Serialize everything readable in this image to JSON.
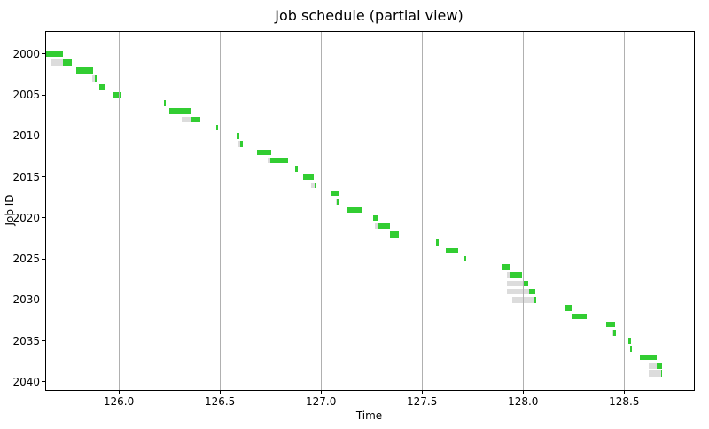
{
  "chart_data": {
    "type": "bar",
    "variant": "gantt-horizontal",
    "title": "Job schedule (partial view)",
    "xlabel": "Time",
    "ylabel": "Job ID",
    "xlim": [
      125.64,
      128.845
    ],
    "ylim_top": 1997.3,
    "ylim_bottom": 2041.0,
    "grid": "vertical-only",
    "legend": "none",
    "bar_height_units": 0.72,
    "colors": {
      "run_bar": "#32CD32",
      "queued_bar": "#DCDCDC",
      "gridline": "#b0b0b0",
      "spine": "#000000",
      "background": "#ffffff"
    },
    "xticks": [
      {
        "v": 126.0,
        "label": "126.0"
      },
      {
        "v": 126.5,
        "label": "126.5"
      },
      {
        "v": 127.0,
        "label": "127.0"
      },
      {
        "v": 127.5,
        "label": "127.5"
      },
      {
        "v": 128.0,
        "label": "128.0"
      },
      {
        "v": 128.5,
        "label": "128.5"
      }
    ],
    "yticks": [
      {
        "v": 2000,
        "label": "2000"
      },
      {
        "v": 2005,
        "label": "2005"
      },
      {
        "v": 2010,
        "label": "2010"
      },
      {
        "v": 2015,
        "label": "2015"
      },
      {
        "v": 2020,
        "label": "2020"
      },
      {
        "v": 2025,
        "label": "2025"
      },
      {
        "v": 2030,
        "label": "2030"
      },
      {
        "v": 2035,
        "label": "2035"
      },
      {
        "v": 2040,
        "label": "2040"
      }
    ],
    "jobs": [
      {
        "id": 2000,
        "queued": null,
        "run": [
          125.64,
          125.725
        ]
      },
      {
        "id": 2001,
        "queued": [
          125.662,
          125.725
        ],
        "run": [
          125.725,
          125.768
        ]
      },
      {
        "id": 2002,
        "queued": null,
        "run": [
          125.788,
          125.874
        ]
      },
      {
        "id": 2003,
        "queued": [
          125.87,
          125.879
        ],
        "run": [
          125.879,
          125.895
        ]
      },
      {
        "id": 2004,
        "queued": null,
        "run": [
          125.903,
          125.93
        ]
      },
      {
        "id": 2005,
        "queued": null,
        "run": [
          125.972,
          126.013
        ]
      },
      {
        "id": 2006,
        "queued": null,
        "run": [
          126.224,
          126.233
        ]
      },
      {
        "id": 2007,
        "queued": null,
        "run": [
          126.251,
          126.357
        ]
      },
      {
        "id": 2008,
        "queued": [
          126.313,
          126.357
        ],
        "run": [
          126.357,
          126.401
        ]
      },
      {
        "id": 2009,
        "queued": null,
        "run": [
          126.481,
          126.49
        ]
      },
      {
        "id": 2010,
        "queued": null,
        "run": [
          126.582,
          126.595
        ]
      },
      {
        "id": 2011,
        "queued": [
          126.585,
          126.6
        ],
        "run": [
          126.6,
          126.614
        ]
      },
      {
        "id": 2012,
        "queued": null,
        "run": [
          126.682,
          126.754
        ]
      },
      {
        "id": 2013,
        "queued": [
          126.737,
          126.751
        ],
        "run": [
          126.751,
          126.835
        ]
      },
      {
        "id": 2014,
        "queued": null,
        "run": [
          126.871,
          126.883
        ]
      },
      {
        "id": 2015,
        "queued": null,
        "run": [
          126.912,
          126.966
        ]
      },
      {
        "id": 2016,
        "queued": [
          126.953,
          126.967
        ],
        "run": [
          126.967,
          126.978
        ]
      },
      {
        "id": 2017,
        "queued": null,
        "run": [
          127.05,
          127.089
        ]
      },
      {
        "id": 2018,
        "queued": [
          127.072,
          127.079
        ],
        "run": [
          127.079,
          127.084
        ]
      },
      {
        "id": 2019,
        "queued": null,
        "run": [
          127.125,
          127.204
        ]
      },
      {
        "id": 2020,
        "queued": null,
        "run": [
          127.26,
          127.278
        ]
      },
      {
        "id": 2021,
        "queued": [
          127.268,
          127.278
        ],
        "run": [
          127.278,
          127.34
        ]
      },
      {
        "id": 2022,
        "queued": null,
        "run": [
          127.34,
          127.384
        ]
      },
      {
        "id": 2023,
        "queued": null,
        "run": [
          127.57,
          127.584
        ]
      },
      {
        "id": 2024,
        "queued": null,
        "run": [
          127.618,
          127.677
        ]
      },
      {
        "id": 2025,
        "queued": null,
        "run": [
          127.706,
          127.718
        ]
      },
      {
        "id": 2026,
        "queued": null,
        "run": [
          127.892,
          127.932
        ]
      },
      {
        "id": 2027,
        "queued": [
          127.918,
          127.931
        ],
        "run": [
          127.931,
          127.994
        ]
      },
      {
        "id": 2028,
        "queued": [
          127.921,
          127.997
        ],
        "run": [
          127.997,
          128.026
        ]
      },
      {
        "id": 2029,
        "queued": [
          127.918,
          128.031
        ],
        "run": [
          128.031,
          128.06
        ]
      },
      {
        "id": 2030,
        "queued": [
          127.947,
          128.053
        ],
        "run": [
          128.053,
          128.064
        ]
      },
      {
        "id": 2031,
        "queued": null,
        "run": [
          128.206,
          128.242
        ]
      },
      {
        "id": 2032,
        "queued": null,
        "run": [
          128.24,
          128.313
        ]
      },
      {
        "id": 2033,
        "queued": null,
        "run": [
          128.411,
          128.454
        ]
      },
      {
        "id": 2034,
        "queued": [
          128.437,
          128.448
        ],
        "run": [
          128.448,
          128.459
        ]
      },
      {
        "id": 2035,
        "queued": null,
        "run": [
          128.52,
          128.532
        ]
      },
      {
        "id": 2036,
        "queued": null,
        "run": [
          128.531,
          128.538
        ]
      },
      {
        "id": 2037,
        "queued": null,
        "run": [
          128.579,
          128.659
        ]
      },
      {
        "id": 2038,
        "queued": [
          128.623,
          128.662
        ],
        "run": [
          128.662,
          128.686
        ]
      },
      {
        "id": 2039,
        "queued": [
          128.623,
          128.681
        ],
        "run": [
          128.681,
          128.688
        ]
      }
    ]
  }
}
